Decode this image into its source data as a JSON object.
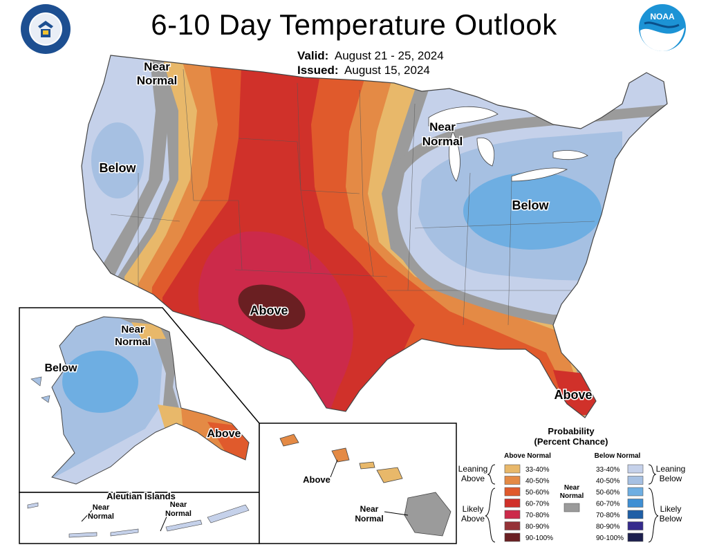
{
  "header": {
    "title": "6-10 Day Temperature Outlook",
    "valid_label": "Valid:",
    "valid_value": "August 21 - 25, 2024",
    "issued_label": "Issued:",
    "issued_value": "August 15, 2024"
  },
  "logos": {
    "left": "doc-seal-icon",
    "right": "noaa-logo-icon",
    "right_text": "NOAA"
  },
  "map_labels": {
    "conus_nw_near": "Near",
    "conus_nw_normal": "Normal",
    "conus_west_below": "Below",
    "conus_mw_near": "Near",
    "conus_mw_normal": "Normal",
    "conus_east_below": "Below",
    "conus_sw_above": "Above",
    "conus_fl_above": "Above",
    "alaska_near": "Near",
    "alaska_normal": "Normal",
    "alaska_below": "Below",
    "alaska_above": "Above",
    "aleutian_title": "Aleutian Islands",
    "aleutian_near1": "Near",
    "aleutian_normal1": "Normal",
    "aleutian_near2": "Near",
    "aleutian_normal2": "Normal",
    "hawaii_above": "Above",
    "hawaii_near": "Near",
    "hawaii_normal": "Normal"
  },
  "legend": {
    "title_line1": "Probability",
    "title_line2": "(Percent Chance)",
    "above_header": "Above Normal",
    "below_header": "Below Normal",
    "leaning_above_1": "Leaning",
    "leaning_above_2": "Above",
    "likely_above_1": "Likely",
    "likely_above_2": "Above",
    "leaning_below_1": "Leaning",
    "leaning_below_2": "Below",
    "likely_below_1": "Likely",
    "likely_below_2": "Below",
    "near_1": "Near",
    "near_2": "Normal",
    "near_color": "#9b9b9b",
    "above": [
      {
        "label": "33-40%",
        "color": "#e8b86a"
      },
      {
        "label": "40-50%",
        "color": "#e48a45"
      },
      {
        "label": "50-60%",
        "color": "#e05a2c"
      },
      {
        "label": "60-70%",
        "color": "#d0312a"
      },
      {
        "label": "70-80%",
        "color": "#cc2a4a"
      },
      {
        "label": "80-90%",
        "color": "#953237"
      },
      {
        "label": "90-100%",
        "color": "#6a1f22"
      }
    ],
    "below": [
      {
        "label": "33-40%",
        "color": "#c5d1ea"
      },
      {
        "label": "40-50%",
        "color": "#a6c0e2"
      },
      {
        "label": "50-60%",
        "color": "#6eaee2"
      },
      {
        "label": "60-70%",
        "color": "#3f8fd3"
      },
      {
        "label": "70-80%",
        "color": "#1f5fa6"
      },
      {
        "label": "80-90%",
        "color": "#352b8c"
      },
      {
        "label": "90-100%",
        "color": "#1c1f4e"
      }
    ]
  }
}
